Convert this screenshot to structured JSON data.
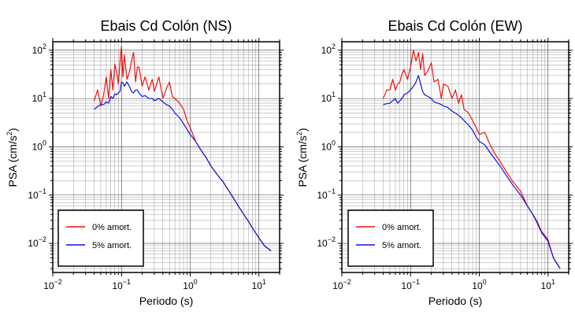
{
  "colors": {
    "zero_damping": "#ee1111",
    "five_damping": "#1111dd",
    "grid": "#000000"
  },
  "chart_data": [
    {
      "type": "line",
      "title": "Ebais Cd Colón (NS)",
      "xlabel": "Periodo (s)",
      "ylabel_main": "PSA (cm/s",
      "ylabel_sup": "2",
      "ylabel_tail": ")",
      "xscale": "log",
      "yscale": "log",
      "xlim": [
        0.01,
        20
      ],
      "ylim": [
        0.0025,
        150
      ],
      "grid": true,
      "legend_position": "bottom-left",
      "x_ticks": [
        {
          "base": "10",
          "exp": "−2",
          "value": 0.01
        },
        {
          "base": "10",
          "exp": "−1",
          "value": 0.1
        },
        {
          "base": "10",
          "exp": "0",
          "value": 1
        },
        {
          "base": "10",
          "exp": "1",
          "value": 10
        }
      ],
      "y_ticks": [
        {
          "base": "10",
          "exp": "−2",
          "value": 0.01
        },
        {
          "base": "10",
          "exp": "−1",
          "value": 0.1
        },
        {
          "base": "10",
          "exp": "0",
          "value": 1
        },
        {
          "base": "10",
          "exp": "1",
          "value": 10
        },
        {
          "base": "10",
          "exp": "2",
          "value": 100
        }
      ],
      "series": [
        {
          "name": "0% amort.",
          "color": "#ee1111",
          "x": [
            0.04,
            0.045,
            0.05,
            0.055,
            0.06,
            0.065,
            0.07,
            0.075,
            0.08,
            0.085,
            0.09,
            0.095,
            0.1,
            0.105,
            0.11,
            0.12,
            0.13,
            0.14,
            0.15,
            0.16,
            0.17,
            0.18,
            0.2,
            0.22,
            0.25,
            0.28,
            0.3,
            0.35,
            0.4,
            0.45,
            0.5,
            0.55,
            0.6,
            0.7,
            0.8,
            0.9,
            1.0,
            1.2,
            1.4,
            1.7,
            2.0,
            2.5,
            3,
            4,
            5,
            6,
            7,
            8,
            10,
            12,
            15
          ],
          "y": [
            9,
            15,
            7,
            12,
            28,
            10,
            40,
            15,
            52,
            35,
            20,
            55,
            120,
            28,
            80,
            25,
            35,
            60,
            90,
            22,
            45,
            45,
            18,
            28,
            15,
            25,
            14,
            28,
            10,
            16,
            22,
            11,
            10,
            8,
            6,
            3.5,
            2.5,
            1.3,
            0.9,
            0.6,
            0.4,
            0.26,
            0.19,
            0.1,
            0.06,
            0.04,
            0.029,
            0.021,
            0.013,
            0.009,
            0.007
          ]
        },
        {
          "name": "5% amort.",
          "color": "#1111dd",
          "x": [
            0.04,
            0.045,
            0.05,
            0.055,
            0.06,
            0.065,
            0.07,
            0.075,
            0.08,
            0.085,
            0.09,
            0.095,
            0.1,
            0.105,
            0.11,
            0.12,
            0.13,
            0.14,
            0.15,
            0.16,
            0.17,
            0.18,
            0.2,
            0.22,
            0.25,
            0.28,
            0.3,
            0.35,
            0.4,
            0.45,
            0.5,
            0.55,
            0.6,
            0.7,
            0.8,
            0.9,
            1.0,
            1.2,
            1.4,
            1.7,
            2.0,
            2.5,
            3,
            4,
            5,
            6,
            7,
            8,
            10,
            12,
            15
          ],
          "y": [
            6,
            6.8,
            7.5,
            7.5,
            8.5,
            8,
            11,
            10,
            12.5,
            12,
            13,
            14,
            22,
            21,
            18,
            22,
            18,
            14,
            13,
            15,
            15,
            13,
            11,
            11.5,
            10,
            10,
            9,
            10,
            8.5,
            7.5,
            7,
            6,
            5,
            4,
            3,
            2.3,
            1.8,
            1.3,
            0.9,
            0.6,
            0.4,
            0.26,
            0.19,
            0.1,
            0.06,
            0.04,
            0.029,
            0.021,
            0.013,
            0.009,
            0.007
          ]
        }
      ]
    },
    {
      "type": "line",
      "title": "Ebais Cd Colón (EW)",
      "xlabel": "Periodo (s)",
      "ylabel_main": "PSA (cm/s",
      "ylabel_sup": "2",
      "ylabel_tail": ")",
      "xscale": "log",
      "yscale": "log",
      "xlim": [
        0.01,
        20
      ],
      "ylim": [
        0.0025,
        150
      ],
      "grid": true,
      "legend_position": "bottom-left",
      "x_ticks": [
        {
          "base": "10",
          "exp": "−2",
          "value": 0.01
        },
        {
          "base": "10",
          "exp": "−1",
          "value": 0.1
        },
        {
          "base": "10",
          "exp": "0",
          "value": 1
        },
        {
          "base": "10",
          "exp": "1",
          "value": 10
        }
      ],
      "y_ticks": [
        {
          "base": "10",
          "exp": "−2",
          "value": 0.01
        },
        {
          "base": "10",
          "exp": "−1",
          "value": 0.1
        },
        {
          "base": "10",
          "exp": "0",
          "value": 1
        },
        {
          "base": "10",
          "exp": "1",
          "value": 10
        },
        {
          "base": "10",
          "exp": "2",
          "value": 100
        }
      ],
      "series": [
        {
          "name": "0% amort.",
          "color": "#ee1111",
          "x": [
            0.04,
            0.045,
            0.05,
            0.055,
            0.06,
            0.065,
            0.07,
            0.075,
            0.08,
            0.09,
            0.1,
            0.11,
            0.12,
            0.13,
            0.14,
            0.15,
            0.16,
            0.18,
            0.2,
            0.22,
            0.25,
            0.28,
            0.3,
            0.35,
            0.4,
            0.45,
            0.5,
            0.55,
            0.6,
            0.7,
            0.8,
            0.9,
            1.0,
            1.2,
            1.4,
            1.7,
            2.0,
            2.5,
            3,
            4,
            5,
            6,
            7,
            8,
            10,
            12,
            15
          ],
          "y": [
            10,
            15,
            15,
            25,
            15,
            20,
            22,
            32,
            40,
            25,
            45,
            100,
            60,
            90,
            40,
            85,
            30,
            38,
            55,
            22,
            25,
            10,
            20,
            18,
            10,
            15,
            8,
            12,
            6,
            5,
            3.5,
            2.5,
            1.8,
            2,
            1.2,
            0.7,
            0.5,
            0.3,
            0.2,
            0.12,
            0.06,
            0.04,
            0.028,
            0.018,
            0.012,
            0.005,
            0.003
          ]
        },
        {
          "name": "5% amort.",
          "color": "#1111dd",
          "x": [
            0.04,
            0.045,
            0.05,
            0.055,
            0.06,
            0.065,
            0.07,
            0.075,
            0.08,
            0.09,
            0.1,
            0.11,
            0.12,
            0.13,
            0.14,
            0.15,
            0.16,
            0.18,
            0.2,
            0.22,
            0.25,
            0.28,
            0.3,
            0.35,
            0.4,
            0.45,
            0.5,
            0.55,
            0.6,
            0.7,
            0.8,
            0.9,
            1.0,
            1.2,
            1.4,
            1.7,
            2.0,
            2.5,
            3,
            4,
            5,
            6,
            7,
            8,
            10,
            12,
            15
          ],
          "y": [
            7.5,
            7.8,
            8,
            9,
            10,
            8,
            9,
            10,
            12,
            13,
            15,
            18,
            22,
            30,
            20,
            14,
            12,
            11,
            10,
            8.5,
            8,
            7.5,
            7,
            6.5,
            5.5,
            5,
            4.5,
            4,
            3.5,
            2.8,
            2.2,
            1.6,
            1.3,
            1.1,
            0.8,
            0.55,
            0.4,
            0.25,
            0.17,
            0.1,
            0.06,
            0.04,
            0.026,
            0.017,
            0.011,
            0.005,
            0.003
          ]
        }
      ]
    }
  ]
}
